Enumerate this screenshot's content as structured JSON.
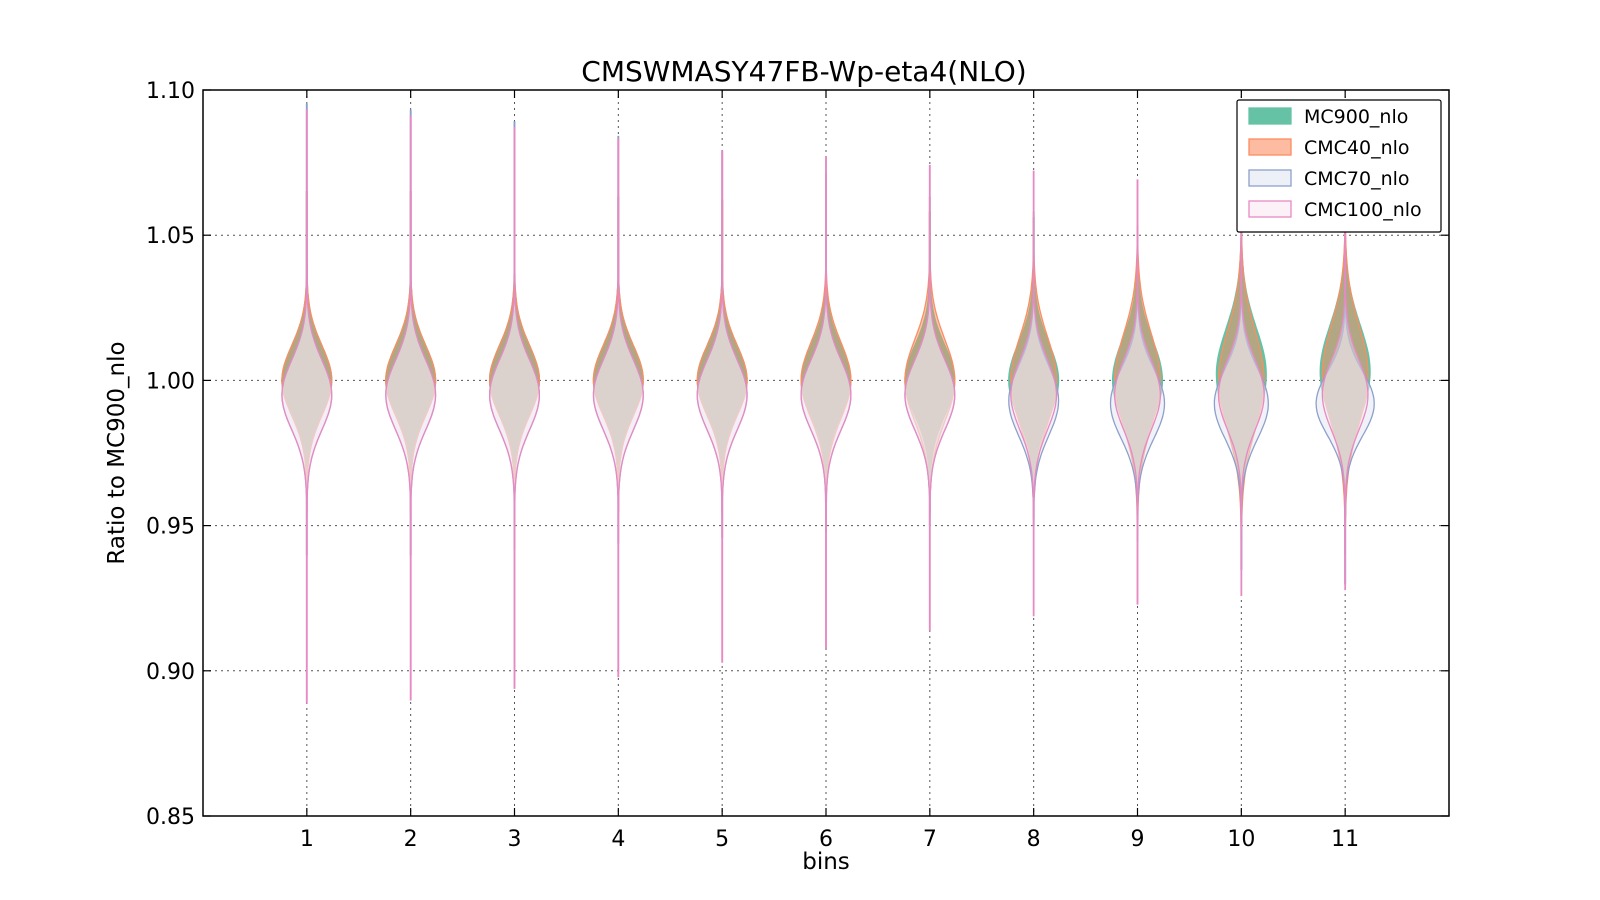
{
  "chart_data": {
    "type": "violin",
    "title": "CMSWMASY47FB-Wp-eta4(NLO)",
    "xlabel": "bins",
    "ylabel": "Ratio to MC900_nlo",
    "xlim": [
      0,
      12
    ],
    "ylim": [
      0.85,
      1.1
    ],
    "grid": true,
    "legend_position": "top-right",
    "categories": [
      1,
      2,
      3,
      4,
      5,
      6,
      7,
      8,
      9,
      10,
      11
    ],
    "xticks": [
      "1",
      "2",
      "3",
      "4",
      "5",
      "6",
      "7",
      "8",
      "9",
      "10",
      "11"
    ],
    "yticks": [
      "0.85",
      "0.90",
      "0.95",
      "1.00",
      "1.05",
      "1.10"
    ],
    "series": [
      {
        "name": "MC900_nlo",
        "fill": "#66c2a5",
        "stroke": "#66c2a5",
        "fill_opacity": 1.0,
        "min": [
          0.963,
          0.963,
          0.962,
          0.961,
          0.962,
          0.962,
          0.963,
          0.96,
          0.961,
          0.958,
          0.96
        ],
        "max": [
          1.065,
          1.065,
          1.064,
          1.063,
          1.062,
          1.06,
          1.058,
          1.056,
          1.053,
          1.052,
          1.051
        ],
        "center": [
          1.0,
          1.0,
          1.0,
          1.0,
          1.0,
          1.0,
          1.0,
          1.0,
          1.0,
          1.002,
          1.003
        ],
        "max_halfwidth": [
          0.24,
          0.24,
          0.24,
          0.24,
          0.24,
          0.24,
          0.24,
          0.24,
          0.24,
          0.24,
          0.24
        ],
        "spread": [
          0.012,
          0.012,
          0.012,
          0.012,
          0.012,
          0.012,
          0.012,
          0.013,
          0.014,
          0.016,
          0.016
        ]
      },
      {
        "name": "CMC40_nlo",
        "fill": "#fc8d62",
        "stroke": "#fc8d62",
        "fill_opacity": 0.5,
        "min": [
          0.963,
          0.963,
          0.962,
          0.961,
          0.962,
          0.962,
          0.963,
          0.96,
          0.948,
          0.945,
          0.94
        ],
        "max": [
          1.065,
          1.065,
          1.064,
          1.063,
          1.062,
          1.06,
          1.058,
          1.056,
          1.053,
          1.058,
          1.058
        ],
        "center": [
          1.0,
          1.0,
          1.0,
          1.0,
          1.0,
          1.0,
          1.0,
          1.0,
          1.0,
          1.0,
          1.002
        ],
        "max_halfwidth": [
          0.24,
          0.24,
          0.24,
          0.24,
          0.24,
          0.24,
          0.24,
          0.22,
          0.22,
          0.22,
          0.22
        ],
        "spread": [
          0.012,
          0.012,
          0.012,
          0.012,
          0.012,
          0.013,
          0.014,
          0.015,
          0.016,
          0.017,
          0.017
        ]
      },
      {
        "name": "CMC70_nlo",
        "fill": "#e2e6f2",
        "stroke": "#8da0cb",
        "fill_opacity": 0.5,
        "min": [
          0.94,
          0.94,
          0.942,
          0.944,
          0.946,
          0.948,
          0.95,
          0.95,
          0.945,
          0.935,
          0.93
        ],
        "max": [
          1.095,
          1.093,
          1.089,
          1.084,
          1.079,
          1.071,
          1.063,
          1.058,
          1.048,
          1.042,
          1.042
        ],
        "center": [
          0.995,
          0.995,
          0.995,
          0.995,
          0.995,
          0.995,
          0.995,
          0.993,
          0.992,
          0.992,
          0.992
        ],
        "max_halfwidth": [
          0.24,
          0.24,
          0.24,
          0.24,
          0.24,
          0.24,
          0.24,
          0.24,
          0.26,
          0.26,
          0.28
        ],
        "spread": [
          0.012,
          0.012,
          0.012,
          0.012,
          0.012,
          0.012,
          0.012,
          0.012,
          0.012,
          0.012,
          0.011
        ]
      },
      {
        "name": "CMC100_nlo",
        "fill": "#fbe8f4",
        "stroke": "#e78ac3",
        "fill_opacity": 0.35,
        "min": [
          0.889,
          0.89,
          0.894,
          0.898,
          0.903,
          0.908,
          0.914,
          0.919,
          0.923,
          0.926,
          0.928
        ],
        "max": [
          1.093,
          1.091,
          1.087,
          1.083,
          1.079,
          1.077,
          1.074,
          1.072,
          1.069,
          1.068,
          1.067
        ],
        "center": [
          0.995,
          0.995,
          0.995,
          0.995,
          0.995,
          0.995,
          0.995,
          0.995,
          0.995,
          0.995,
          0.995
        ],
        "max_halfwidth": [
          0.24,
          0.24,
          0.24,
          0.24,
          0.24,
          0.24,
          0.24,
          0.22,
          0.22,
          0.22,
          0.22
        ],
        "spread": [
          0.012,
          0.012,
          0.012,
          0.012,
          0.012,
          0.012,
          0.012,
          0.012,
          0.012,
          0.012,
          0.012
        ]
      }
    ]
  }
}
